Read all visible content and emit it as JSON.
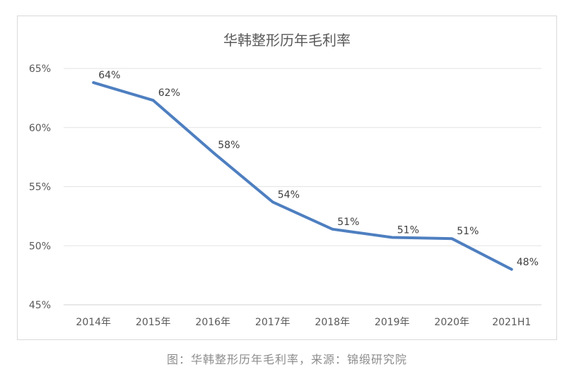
{
  "chart_data": {
    "type": "line",
    "title": "华韩整形历年毛利率",
    "categories": [
      "2014年",
      "2015年",
      "2016年",
      "2017年",
      "2018年",
      "2019年",
      "2020年",
      "2021H1"
    ],
    "series": [
      {
        "values": [
          63.8,
          62.3,
          57.9,
          53.7,
          51.4,
          50.7,
          50.6,
          48.0
        ],
        "labels": [
          "64%",
          "62%",
          "58%",
          "54%",
          "51%",
          "51%",
          "51%",
          "48%"
        ],
        "color": "#4e7fc0"
      }
    ],
    "ylim": [
      45,
      65
    ],
    "yticks": [
      45,
      50,
      55,
      60,
      65
    ],
    "ytick_labels": [
      "45%",
      "50%",
      "55%",
      "60%",
      "65%"
    ],
    "grid": true,
    "legend": "none"
  },
  "caption": "图：华韩整形历年毛利率，来源：锦缎研究院"
}
